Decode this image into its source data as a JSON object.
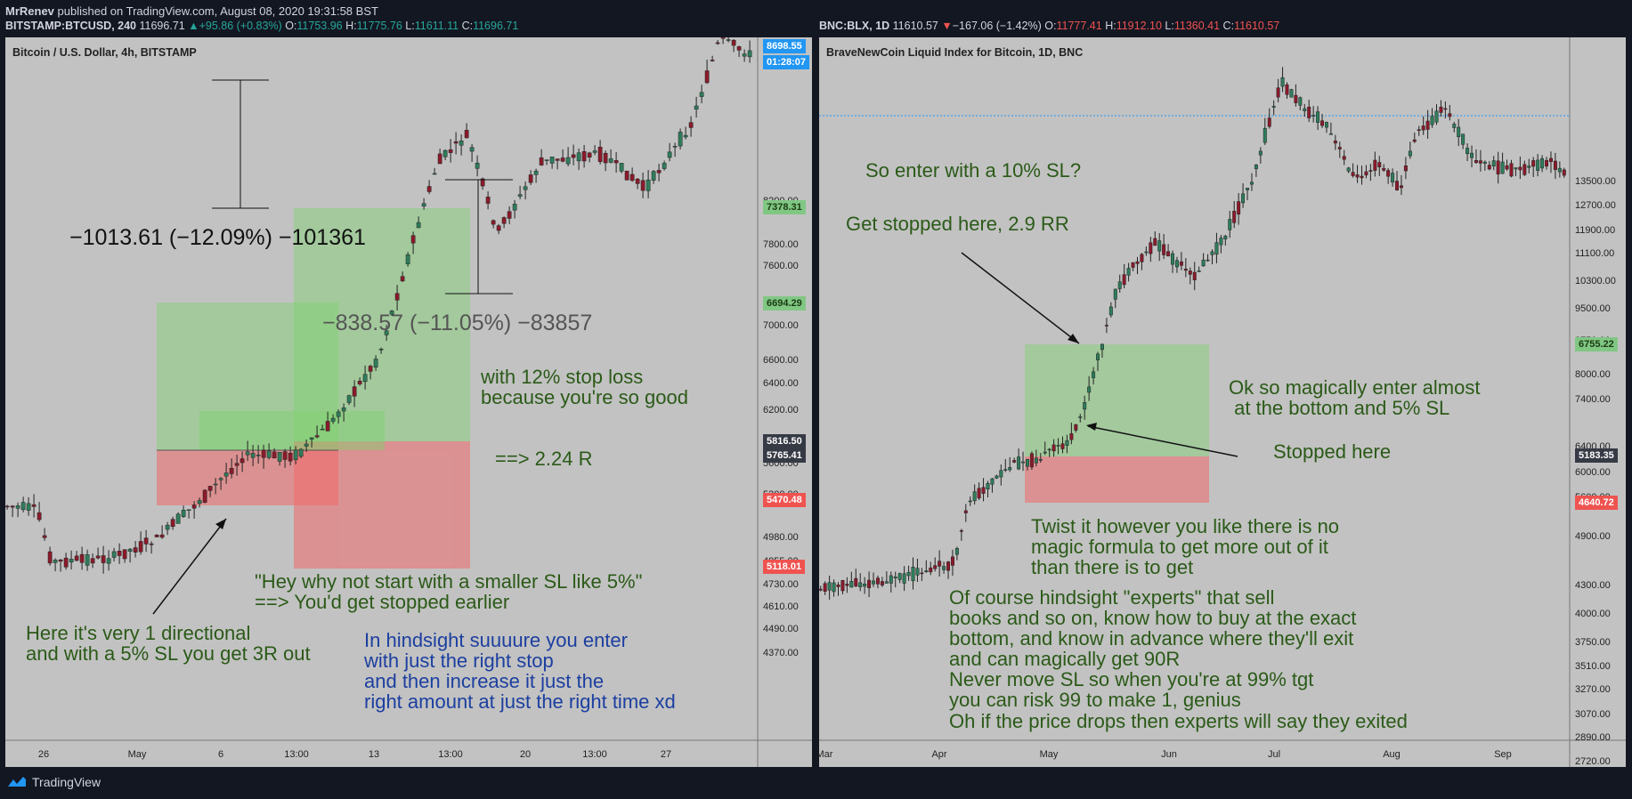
{
  "header": {
    "user": "MrRenev",
    "published": " published on TradingView.com, August 08, 2020 19:31:58 BST"
  },
  "left_ticker": {
    "symbol": "BITSTAMP:BTCUSD, 240",
    "price": "11696.71",
    "change": "+95.86 (+0.83%)",
    "o_label": "O:",
    "o": "11753.96",
    "h_label": "H:",
    "h": "11775.76",
    "l_label": "L:",
    "l": "11611.11",
    "c_label": "C:",
    "c": "11696.71"
  },
  "right_ticker": {
    "symbol": "BNC:BLX, 1D",
    "price": "11610.57",
    "change": "−167.06 (−1.42%)",
    "o_label": "O:",
    "o": "11777.41",
    "h_label": "H:",
    "h": "11912.10",
    "l_label": "L:",
    "l": "11360.41",
    "c_label": "C:",
    "c": "11610.57"
  },
  "chart_data": [
    {
      "type": "candlestick",
      "title": "Bitcoin / U.S. Dollar, 4h, BITSTAMP",
      "x_tick_labels": [
        "26",
        "May",
        "6",
        "13:00",
        "13",
        "13:00",
        "20",
        "13:00",
        "27"
      ],
      "y_tick_labels": [
        "4370.00",
        "4490.00",
        "4610.00",
        "4730.00",
        "4855.00",
        "4980.00",
        "5300.00",
        "5600.00",
        "6000.00",
        "6200.00",
        "6400.00",
        "6600.00",
        "7000.00",
        "7200.00",
        "7600.00",
        "7800.00",
        "8200.00"
      ],
      "price_badges": [
        {
          "label": "8698.55",
          "color": "#2196f3"
        },
        {
          "label": "01:28:07",
          "color": "#2196f3"
        },
        {
          "label": "7378.31",
          "color": "#81c784"
        },
        {
          "label": "6694.29",
          "color": "#81c784"
        },
        {
          "label": "5816.50",
          "color": "#363a45"
        },
        {
          "label": "5765.41",
          "color": "#363a45"
        },
        {
          "label": "5470.48",
          "color": "#ef5350"
        },
        {
          "label": "5118.01",
          "color": "#ef5350"
        }
      ],
      "measurements": [
        {
          "label": "−1013.61 (−12.09%) −101361"
        },
        {
          "label": "−838.57 (−11.05%) −83857"
        }
      ],
      "annotations": [
        "with 12% stop loss\nbecause you're so good",
        "==> 2.24 R",
        "\"Hey why not start with a smaller SL like 5%\"\n==> You'd get stopped earlier",
        "Here it's very 1 directional\nand with a 5% SL you get 3R out",
        "In hindsight suuuure you enter\nwith just the right stop\nand then increase it just the\nright amount at just the right time xd"
      ]
    },
    {
      "type": "candlestick",
      "title": "BraveNewCoin Liquid Index for Bitcoin, 1D, BNC",
      "x_tick_labels": [
        "Mar",
        "Apr",
        "May",
        "Jun",
        "Jul",
        "Aug",
        "Sep"
      ],
      "y_tick_labels": [
        "2720.00",
        "2890.00",
        "3070.00",
        "3270.00",
        "3510.00",
        "3750.00",
        "4000.00",
        "4300.00",
        "4900.00",
        "5600.00",
        "6000.00",
        "6400.00",
        "7400.00",
        "8000.00",
        "8750.00",
        "9500.00",
        "10300.00",
        "11100.00",
        "11900.00",
        "12700.00",
        "13500.00"
      ],
      "price_badges": [
        {
          "label": "6755.22",
          "color": "#81c784"
        },
        {
          "label": "5183.35",
          "color": "#363a45"
        },
        {
          "label": "4640.72",
          "color": "#ef5350"
        }
      ],
      "annotations": [
        "So enter with a 10% SL?",
        "Get stopped here, 2.9 RR",
        "Ok so magically enter almost\n at the bottom and 5% SL",
        "Stopped here",
        "Twist it however you like there is no\nmagic formula to get more out of it\nthan there is to get",
        "Of course hindsight \"experts\" that sell\nbooks and so on, know how to buy at the exact\nbottom, and know in advance where they'll exit\nand can magically get 90R\nNever move SL so when you're at 99% tgt\nyou can risk 99 to make 1, genius\nOh if the price drops then experts will say they exited"
      ]
    }
  ],
  "footer": {
    "brand": "TradingView"
  },
  "colors": {
    "profit_zone": "#7ed36f",
    "loss_zone": "#f06a6a",
    "panel_bg": "#c2c2c2",
    "up_candle": "#2e7d5b",
    "down_candle": "#8b1a2b"
  }
}
